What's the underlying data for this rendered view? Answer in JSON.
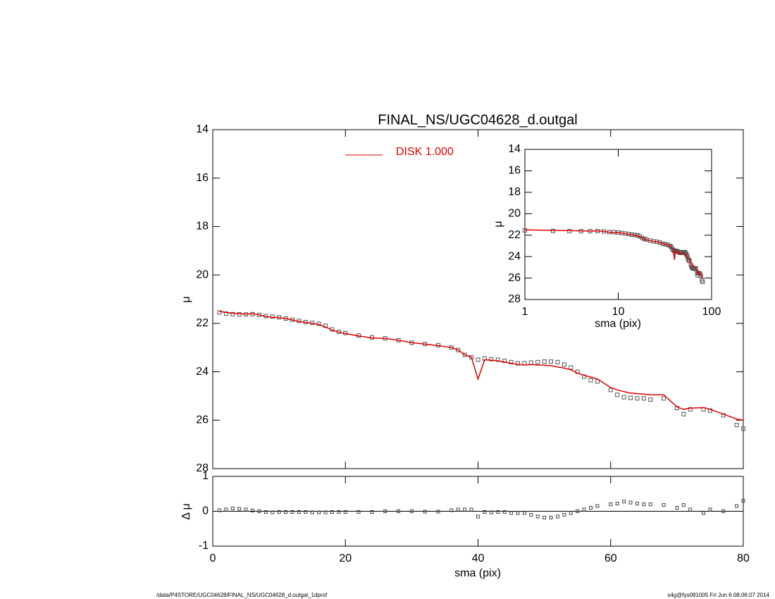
{
  "chart_data": [
    {
      "type": "line",
      "title": "FINAL_NS/UGC04628_d.outgal",
      "ylabel": "μ",
      "xlim": [
        0,
        80
      ],
      "xticks": [
        0,
        20,
        40,
        60,
        80
      ],
      "ylim": [
        28,
        14
      ],
      "yticks": [
        14,
        16,
        18,
        20,
        22,
        24,
        26,
        28
      ],
      "x": [
        1,
        2,
        3,
        4,
        5,
        6,
        7,
        8,
        9,
        10,
        11,
        12,
        13,
        14,
        15,
        16,
        17,
        18,
        19,
        20,
        22,
        24,
        26,
        28,
        30,
        32,
        34,
        36,
        37,
        38,
        39,
        40,
        41,
        42,
        43,
        44,
        45,
        46,
        47,
        48,
        49,
        50,
        51,
        52,
        53,
        54,
        55,
        56,
        57,
        58,
        60,
        61,
        62,
        63,
        64,
        65,
        66,
        68,
        70,
        71,
        72,
        74,
        75,
        77,
        79,
        80
      ],
      "series": [
        {
          "color": "#555555",
          "marker": "square",
          "values": [
            21.55,
            21.6,
            21.62,
            21.63,
            21.63,
            21.62,
            21.65,
            21.7,
            21.72,
            21.75,
            21.8,
            21.85,
            21.9,
            21.95,
            21.98,
            22.02,
            22.1,
            22.25,
            22.35,
            22.4,
            22.5,
            22.58,
            22.62,
            22.7,
            22.8,
            22.85,
            22.9,
            23.0,
            23.1,
            23.3,
            23.4,
            23.5,
            23.45,
            23.48,
            23.5,
            23.55,
            23.6,
            23.65,
            23.65,
            23.62,
            23.6,
            23.58,
            23.58,
            23.6,
            23.7,
            23.82,
            24.0,
            24.2,
            24.35,
            24.4,
            24.75,
            24.95,
            25.05,
            25.08,
            25.1,
            25.1,
            25.15,
            25.1,
            25.5,
            25.75,
            25.55,
            25.55,
            25.6,
            25.8,
            26.2,
            26.35
          ]
        },
        {
          "name": "DISK  1.000",
          "color": "#e00000",
          "values": [
            21.5,
            21.55,
            21.58,
            21.6,
            21.62,
            21.6,
            21.65,
            21.72,
            21.75,
            21.76,
            21.8,
            21.86,
            21.92,
            21.96,
            22.0,
            22.05,
            22.15,
            22.28,
            22.36,
            22.42,
            22.52,
            22.6,
            22.62,
            22.7,
            22.8,
            22.86,
            22.92,
            23.0,
            23.1,
            23.3,
            23.4,
            24.3,
            23.5,
            23.52,
            23.55,
            23.6,
            23.65,
            23.7,
            23.72,
            23.7,
            23.72,
            23.73,
            23.75,
            23.8,
            23.85,
            23.92,
            24.05,
            24.15,
            24.22,
            24.3,
            24.65,
            24.75,
            24.82,
            24.88,
            24.9,
            24.92,
            24.95,
            24.95,
            25.45,
            25.55,
            25.5,
            25.48,
            25.55,
            25.75,
            25.95,
            26.0
          ]
        }
      ]
    },
    {
      "type": "scatter",
      "ylabel": "Δ μ",
      "xlabel": "sma (pix)",
      "xlim": [
        0,
        80
      ],
      "xticks": [
        0,
        20,
        40,
        60,
        80
      ],
      "ylim": [
        -1,
        1
      ],
      "yticks": [
        -1,
        0,
        1
      ],
      "values": [
        0.03,
        0.05,
        0.08,
        0.07,
        0.05,
        0.02,
        0,
        -0.02,
        -0.03,
        -0.02,
        -0.02,
        -0.02,
        -0.02,
        -0.02,
        -0.03,
        -0.03,
        -0.03,
        -0.02,
        -0.02,
        -0.02,
        -0.02,
        -0.02,
        0,
        0,
        0,
        -0.01,
        -0.01,
        0.03,
        0.05,
        0.05,
        0.05,
        -0.15,
        -0.02,
        -0.03,
        -0.02,
        -0.02,
        -0.05,
        -0.05,
        -0.05,
        -0.1,
        -0.15,
        -0.18,
        -0.18,
        -0.15,
        -0.1,
        -0.05,
        0,
        0.05,
        0.1,
        0.15,
        0.2,
        0.22,
        0.28,
        0.25,
        0.22,
        0.2,
        0.2,
        0.18,
        0.1,
        0.18,
        0.05,
        -0.05,
        0.05,
        0,
        0.15,
        0.3
      ]
    },
    {
      "type": "line",
      "log": true,
      "xlabel": "sma (pix)",
      "ylabel": "μ",
      "xlim": [
        1,
        100
      ],
      "xticks": [
        1,
        10,
        100
      ],
      "ylim": [
        28,
        14
      ],
      "yticks": [
        14,
        16,
        18,
        20,
        22,
        24,
        26,
        28
      ]
    }
  ],
  "footer": {
    "left": "/data/P4STORE/UGC04628/FINAL_NS/UGC04628_d.outgal_1dprof",
    "right": "s4g@fys091005  Fri Jun  6 08:06:07 2014"
  }
}
